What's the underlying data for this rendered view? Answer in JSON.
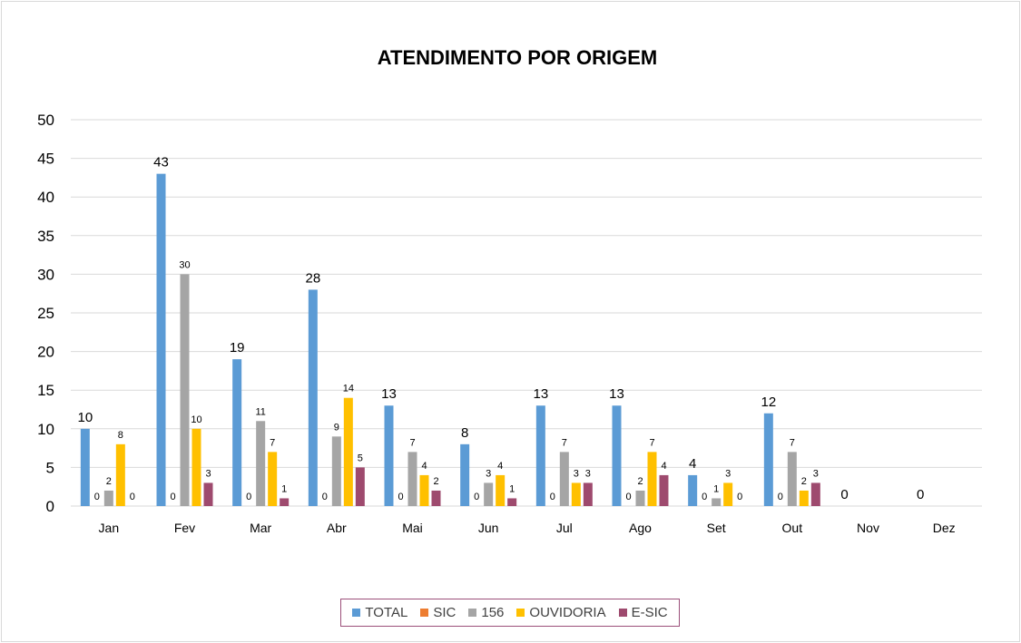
{
  "chart_data": {
    "type": "bar",
    "title": "ATENDIMENTO POR ORIGEM",
    "xlabel": "",
    "ylabel": "",
    "ylim": [
      0,
      50
    ],
    "yticks": [
      0,
      5,
      10,
      15,
      20,
      25,
      30,
      35,
      40,
      45,
      50
    ],
    "grid": true,
    "legend_position": "bottom",
    "categories": [
      "Jan",
      "Fev",
      "Mar",
      "Abr",
      "Mai",
      "Jun",
      "Jul",
      "Ago",
      "Set",
      "Out",
      "Nov",
      "Dez"
    ],
    "series": [
      {
        "name": "TOTAL",
        "color": "#5b9bd5",
        "values": [
          10,
          43,
          19,
          28,
          13,
          8,
          13,
          13,
          4,
          12,
          0,
          0
        ]
      },
      {
        "name": "SIC",
        "color": "#ed7d31",
        "values": [
          0,
          0,
          0,
          0,
          0,
          0,
          0,
          0,
          0,
          0,
          null,
          null
        ]
      },
      {
        "name": "156",
        "color": "#a5a5a5",
        "values": [
          2,
          30,
          11,
          9,
          7,
          3,
          7,
          2,
          1,
          7,
          null,
          null
        ]
      },
      {
        "name": "OUVIDORIA",
        "color": "#ffc000",
        "values": [
          8,
          10,
          7,
          14,
          4,
          4,
          3,
          7,
          3,
          2,
          null,
          null
        ]
      },
      {
        "name": "E-SIC",
        "color": "#9e4a6e",
        "values": [
          0,
          3,
          1,
          5,
          2,
          1,
          3,
          4,
          0,
          3,
          null,
          null
        ]
      }
    ]
  }
}
